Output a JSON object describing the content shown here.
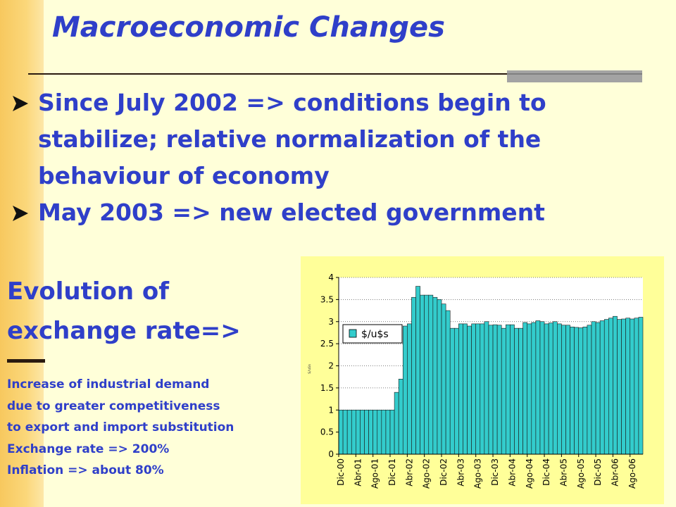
{
  "slide": {
    "title": "Macroeconomic Changes",
    "bullets": [
      {
        "lines": [
          "Since July 2002 => conditions begin to",
          "stabilize; relative normalization of the",
          "behaviour of economy"
        ]
      },
      {
        "lines": [
          "May 2003 => new elected government"
        ]
      }
    ],
    "evolution_lines": [
      "Evolution of",
      "exchange rate=>"
    ],
    "notes": [
      "Increase of industrial demand",
      "due to greater competitiveness",
      "to export and import substitution",
      "Exchange rate => 200%",
      "Inflation => about 80%"
    ],
    "bullet_icon": "arrowhead-bullet-icon",
    "colors": {
      "title": "#2F3FC9",
      "stripe": "#F7C85E",
      "background": "#FFFFD9",
      "chart_bg": "#FFFF99",
      "bars": "#33CCCC"
    }
  },
  "chart_data": {
    "type": "bar",
    "ylabel": "$/u$s",
    "ylim": [
      0,
      4
    ],
    "yticks": [
      "0",
      "0.5",
      "1",
      "1.5",
      "2",
      "2.5",
      "3",
      "3.5",
      "4"
    ],
    "grid": "dotted horizontal",
    "legend_position": "top-left",
    "tick_labels": [
      "Dic-00",
      "Abr-01",
      "Ago-01",
      "Dic-01",
      "Abr-02",
      "Ago-02",
      "Dic-02",
      "Abr-03",
      "Ago-03",
      "Dic-03",
      "Abr-04",
      "Ago-04",
      "Dic-04",
      "Abr-05",
      "Ago-05",
      "Dic-05",
      "Abr-06",
      "Ago-06"
    ],
    "series": [
      {
        "name": "$/u$s",
        "color": "#33CCCC",
        "values": [
          1,
          1,
          1,
          1,
          1,
          1,
          1,
          1,
          1,
          1,
          1,
          1,
          1,
          1.4,
          1.7,
          2.9,
          2.95,
          3.55,
          3.8,
          3.6,
          3.6,
          3.6,
          3.55,
          3.5,
          3.4,
          3.25,
          2.85,
          2.85,
          2.95,
          2.95,
          2.9,
          2.95,
          2.95,
          2.95,
          3.0,
          2.92,
          2.93,
          2.92,
          2.85,
          2.93,
          2.93,
          2.85,
          2.85,
          2.98,
          2.95,
          2.98,
          3.02,
          3.0,
          2.95,
          2.97,
          3.0,
          2.95,
          2.92,
          2.92,
          2.88,
          2.87,
          2.86,
          2.88,
          2.92,
          3.0,
          2.98,
          3.02,
          3.05,
          3.08,
          3.12,
          3.05,
          3.06,
          3.08,
          3.06,
          3.08,
          3.1
        ]
      }
    ]
  }
}
